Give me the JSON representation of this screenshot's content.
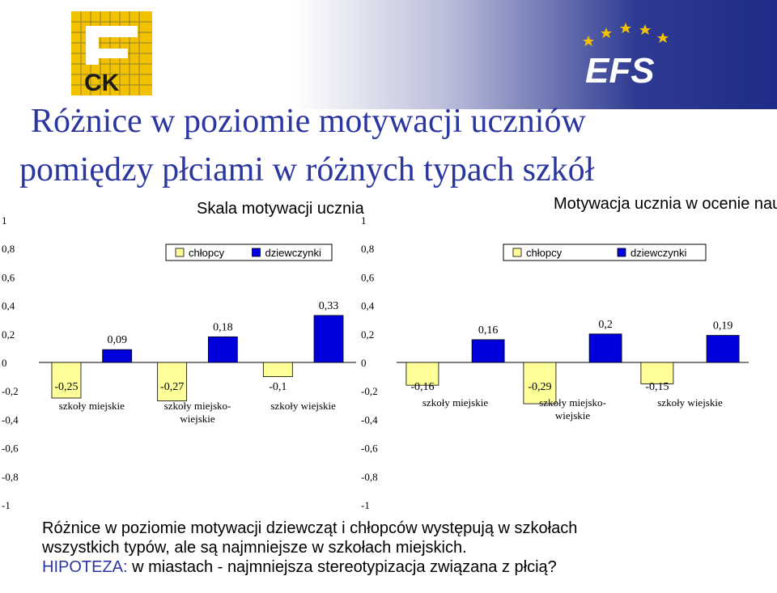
{
  "title": {
    "line1": "Różnice w poziomie motywacji uczniów",
    "line2": "pomiędzy płciami w różnych typach szkół"
  },
  "logos": {
    "left_text": "CK",
    "right_text": "EFS"
  },
  "colors": {
    "title": "#2b36a0",
    "boys": "#ffff99",
    "girls": "#0000dd",
    "banner_blue": "#1f2c87"
  },
  "legend": {
    "boys": "chłopcy",
    "girls": "dziewczynki"
  },
  "chart_data": [
    {
      "type": "bar",
      "title": "Skala motywacji ucznia",
      "categories": [
        "szkoły miejskie",
        "szkoły miejsko-wiejskie",
        "szkoły wiejskie"
      ],
      "series": [
        {
          "name": "chłopcy",
          "values": [
            -0.25,
            -0.27,
            -0.1
          ],
          "labels": [
            "-0,25",
            "-0,27",
            "-0,1"
          ]
        },
        {
          "name": "dziewczynki",
          "values": [
            0.09,
            0.18,
            0.33
          ],
          "labels": [
            "0,09",
            "0,18",
            "0,33"
          ]
        }
      ],
      "ylim": [
        -1,
        1
      ],
      "yticks": [
        "1",
        "0,8",
        "0,6",
        "0,4",
        "0,2",
        "0",
        "-0,2",
        "-0,4",
        "-0,6",
        "-0,8",
        "-1"
      ],
      "grid": false,
      "legend_position": "top-right"
    },
    {
      "type": "bar",
      "title": "Motywacja ucznia w ocenie nauczyciela",
      "categories": [
        "szkoły miejskie",
        "szkoły miejsko-wiejskie",
        "szkoły wiejskie"
      ],
      "series": [
        {
          "name": "chłopcy",
          "values": [
            -0.16,
            -0.29,
            -0.15
          ],
          "labels": [
            "-0,16",
            "-0,29",
            "-0,15"
          ]
        },
        {
          "name": "dziewczynki",
          "values": [
            0.16,
            0.2,
            0.19
          ],
          "labels": [
            "0,16",
            "0,2",
            "0,19"
          ]
        }
      ],
      "ylim": [
        -1,
        1
      ],
      "yticks": [
        "1",
        "0,8",
        "0,6",
        "0,4",
        "0,2",
        "0",
        "-0,2",
        "-0,4",
        "-0,6",
        "-0,8",
        "-1"
      ],
      "grid": false,
      "legend_position": "top-right"
    }
  ],
  "notes": {
    "line1": "Różnice w poziomie motywacji dziewcząt i chłopców występują w szkołach",
    "line2": "wszystkich typów, ale są najmniejsze w szkołach miejskich.",
    "hypothesis_label": "HIPOTEZA:",
    "hypothesis_text": " w miastach - najmniejsza stereotypizacja związana z płcią?"
  }
}
